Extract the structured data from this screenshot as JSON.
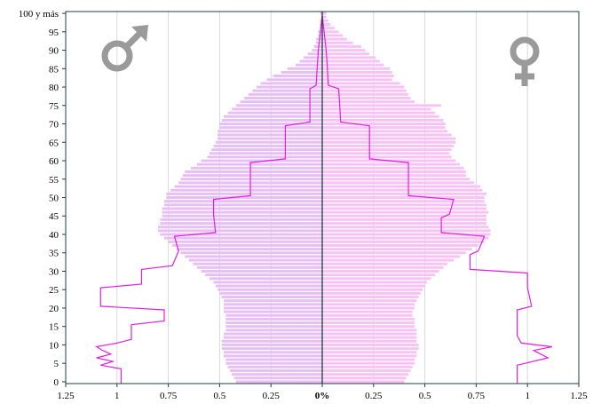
{
  "chart_data": {
    "type": "bar",
    "orientation": "horizontal",
    "subtype": "population-pyramid",
    "title": "",
    "xlabel": "",
    "ylabel": "",
    "xlim": [
      -1.25,
      1.25
    ],
    "ylim": [
      0,
      101
    ],
    "x_ticks": [
      -1.25,
      -1,
      -0.75,
      -0.5,
      -0.25,
      0,
      0.25,
      0.5,
      0.75,
      1,
      1.25
    ],
    "x_tick_labels": [
      "1.25",
      "1",
      "0.75",
      "0.5",
      "0.25",
      "0%",
      "0.25",
      "0.5",
      "0.75",
      "1",
      "1.25"
    ],
    "y_ticks": [
      0,
      5,
      10,
      15,
      20,
      25,
      30,
      35,
      40,
      45,
      50,
      55,
      60,
      65,
      70,
      75,
      80,
      85,
      90,
      95,
      100
    ],
    "y_tick_labels": [
      "0",
      "5",
      "10",
      "15",
      "20",
      "25",
      "30",
      "35",
      "40",
      "45",
      "50",
      "55",
      "60",
      "65",
      "70",
      "75",
      "80",
      "85",
      "90",
      "95",
      "100 y más"
    ],
    "grid": "vertical",
    "legend": "none",
    "symbols": {
      "left": "male-symbol",
      "right": "female-symbol"
    },
    "colors": {
      "male_bar": "#e8bff5",
      "female_bar": "#f8c3f4",
      "line": "#e020e0",
      "center_axis": "#1f3f3f",
      "grid": "#d9d9d9",
      "frame": "#1f3f3f",
      "symbol": "#9a9a9a"
    },
    "series": [
      {
        "side": "left",
        "kind": "bars",
        "ages": [
          0,
          1,
          2,
          3,
          4,
          5,
          6,
          7,
          8,
          9,
          10,
          11,
          12,
          13,
          14,
          15,
          16,
          17,
          18,
          19,
          20,
          21,
          22,
          23,
          24,
          25,
          26,
          27,
          28,
          29,
          30,
          31,
          32,
          33,
          34,
          35,
          36,
          37,
          38,
          39,
          40,
          41,
          42,
          43,
          44,
          45,
          46,
          47,
          48,
          49,
          50,
          51,
          52,
          53,
          54,
          55,
          56,
          57,
          58,
          59,
          60,
          61,
          62,
          63,
          64,
          65,
          66,
          67,
          68,
          69,
          70,
          71,
          72,
          73,
          74,
          75,
          76,
          77,
          78,
          79,
          80,
          81,
          82,
          83,
          84,
          85,
          86,
          87,
          88,
          89,
          90,
          91,
          92,
          93,
          94,
          95,
          96,
          97,
          98,
          99,
          100
        ],
        "values": [
          0.42,
          0.43,
          0.44,
          0.45,
          0.46,
          0.47,
          0.47,
          0.48,
          0.48,
          0.49,
          0.49,
          0.49,
          0.48,
          0.48,
          0.47,
          0.47,
          0.47,
          0.47,
          0.47,
          0.48,
          0.48,
          0.48,
          0.48,
          0.49,
          0.5,
          0.51,
          0.52,
          0.53,
          0.55,
          0.57,
          0.59,
          0.61,
          0.63,
          0.65,
          0.67,
          0.69,
          0.71,
          0.73,
          0.75,
          0.77,
          0.79,
          0.8,
          0.8,
          0.79,
          0.79,
          0.78,
          0.78,
          0.78,
          0.77,
          0.77,
          0.76,
          0.76,
          0.74,
          0.72,
          0.7,
          0.69,
          0.68,
          0.67,
          0.64,
          0.61,
          0.59,
          0.56,
          0.55,
          0.54,
          0.53,
          0.52,
          0.51,
          0.51,
          0.51,
          0.5,
          0.5,
          0.49,
          0.48,
          0.46,
          0.44,
          0.42,
          0.4,
          0.38,
          0.36,
          0.34,
          0.32,
          0.3,
          0.27,
          0.24,
          0.2,
          0.17,
          0.13,
          0.11,
          0.09,
          0.07,
          0.05,
          0.04,
          0.03,
          0.03,
          0.02,
          0.02,
          0.01,
          0.01,
          0.01,
          0.0,
          0.01
        ]
      },
      {
        "side": "right",
        "kind": "bars",
        "ages": [
          0,
          1,
          2,
          3,
          4,
          5,
          6,
          7,
          8,
          9,
          10,
          11,
          12,
          13,
          14,
          15,
          16,
          17,
          18,
          19,
          20,
          21,
          22,
          23,
          24,
          25,
          26,
          27,
          28,
          29,
          30,
          31,
          32,
          33,
          34,
          35,
          36,
          37,
          38,
          39,
          40,
          41,
          42,
          43,
          44,
          45,
          46,
          47,
          48,
          49,
          50,
          51,
          52,
          53,
          54,
          55,
          56,
          57,
          58,
          59,
          60,
          61,
          62,
          63,
          64,
          65,
          66,
          67,
          68,
          69,
          70,
          71,
          72,
          73,
          74,
          75,
          76,
          77,
          78,
          79,
          80,
          81,
          82,
          83,
          84,
          85,
          86,
          87,
          88,
          89,
          90,
          91,
          92,
          93,
          94,
          95,
          96,
          97,
          98,
          99,
          100
        ],
        "values": [
          0.4,
          0.41,
          0.42,
          0.43,
          0.44,
          0.45,
          0.45,
          0.46,
          0.46,
          0.47,
          0.47,
          0.46,
          0.46,
          0.46,
          0.46,
          0.45,
          0.45,
          0.45,
          0.44,
          0.44,
          0.45,
          0.45,
          0.46,
          0.47,
          0.48,
          0.49,
          0.5,
          0.51,
          0.53,
          0.55,
          0.57,
          0.59,
          0.61,
          0.64,
          0.67,
          0.7,
          0.73,
          0.76,
          0.79,
          0.81,
          0.82,
          0.82,
          0.81,
          0.8,
          0.8,
          0.8,
          0.81,
          0.8,
          0.8,
          0.79,
          0.79,
          0.8,
          0.78,
          0.77,
          0.74,
          0.72,
          0.7,
          0.7,
          0.69,
          0.67,
          0.65,
          0.63,
          0.62,
          0.63,
          0.64,
          0.65,
          0.65,
          0.63,
          0.61,
          0.6,
          0.6,
          0.59,
          0.57,
          0.55,
          0.53,
          0.58,
          0.45,
          0.43,
          0.42,
          0.41,
          0.4,
          0.38,
          0.34,
          0.35,
          0.34,
          0.33,
          0.3,
          0.28,
          0.26,
          0.23,
          0.21,
          0.19,
          0.15,
          0.12,
          0.1,
          0.08,
          0.06,
          0.04,
          0.03,
          0.02,
          0.02
        ]
      },
      {
        "side": "left",
        "kind": "line",
        "points": [
          [
            0.98,
            0
          ],
          [
            0.98,
            4
          ],
          [
            1.08,
            5
          ],
          [
            1.02,
            6
          ],
          [
            1.1,
            7
          ],
          [
            1.03,
            8
          ],
          [
            1.07,
            9
          ],
          [
            1.1,
            10
          ],
          [
            1.0,
            11
          ],
          [
            0.93,
            12
          ],
          [
            0.93,
            16
          ],
          [
            0.77,
            17
          ],
          [
            0.77,
            20
          ],
          [
            1.08,
            21
          ],
          [
            1.08,
            26
          ],
          [
            0.88,
            27
          ],
          [
            0.88,
            31
          ],
          [
            0.73,
            32
          ],
          [
            0.7,
            36
          ],
          [
            0.72,
            40
          ],
          [
            0.52,
            41
          ],
          [
            0.53,
            46
          ],
          [
            0.53,
            50
          ],
          [
            0.35,
            51
          ],
          [
            0.35,
            60
          ],
          [
            0.18,
            61
          ],
          [
            0.18,
            70
          ],
          [
            0.06,
            71
          ],
          [
            0.06,
            80
          ],
          [
            0.03,
            81
          ],
          [
            0.02,
            90
          ],
          [
            0.01,
            95
          ],
          [
            0.0,
            100
          ]
        ]
      },
      {
        "side": "right",
        "kind": "line",
        "points": [
          [
            0.95,
            0
          ],
          [
            0.95,
            5
          ],
          [
            1.1,
            7
          ],
          [
            1.03,
            9
          ],
          [
            1.12,
            10
          ],
          [
            0.97,
            11
          ],
          [
            0.95,
            13
          ],
          [
            0.95,
            20
          ],
          [
            1.02,
            21
          ],
          [
            1.0,
            26
          ],
          [
            1.0,
            30
          ],
          [
            0.72,
            31
          ],
          [
            0.72,
            35
          ],
          [
            0.76,
            36
          ],
          [
            0.79,
            40
          ],
          [
            0.58,
            41
          ],
          [
            0.58,
            45
          ],
          [
            0.62,
            46
          ],
          [
            0.64,
            50
          ],
          [
            0.42,
            51
          ],
          [
            0.42,
            60
          ],
          [
            0.23,
            61
          ],
          [
            0.23,
            70
          ],
          [
            0.09,
            71
          ],
          [
            0.08,
            80
          ],
          [
            0.03,
            81
          ],
          [
            0.02,
            90
          ],
          [
            0.01,
            95
          ],
          [
            0.0,
            100
          ]
        ]
      }
    ]
  }
}
